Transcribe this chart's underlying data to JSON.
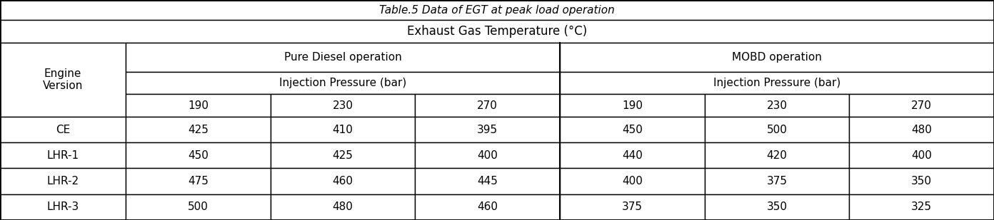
{
  "title": "Table.5 Data of EGT at peak load operation",
  "main_header": "Exhaust Gas Temperature (°C)",
  "col_group1": "Pure Diesel operation",
  "col_group2": "MOBD operation",
  "sub_header": "Injection Pressure (bar)",
  "pressure_cols": [
    "190",
    "230",
    "270",
    "190",
    "230",
    "270"
  ],
  "row_header": [
    "Engine\nVersion",
    "CE",
    "LHR-1",
    "LHR-2",
    "LHR-3"
  ],
  "data": [
    [
      "425",
      "410",
      "395",
      "450",
      "500",
      "480"
    ],
    [
      "450",
      "425",
      "400",
      "440",
      "420",
      "400"
    ],
    [
      "475",
      "460",
      "445",
      "400",
      "375",
      "350"
    ],
    [
      "500",
      "480",
      "460",
      "375",
      "350",
      "325"
    ]
  ],
  "bg_color": "#ffffff",
  "border_color": "#000000",
  "text_color": "#000000",
  "font_size": 11
}
